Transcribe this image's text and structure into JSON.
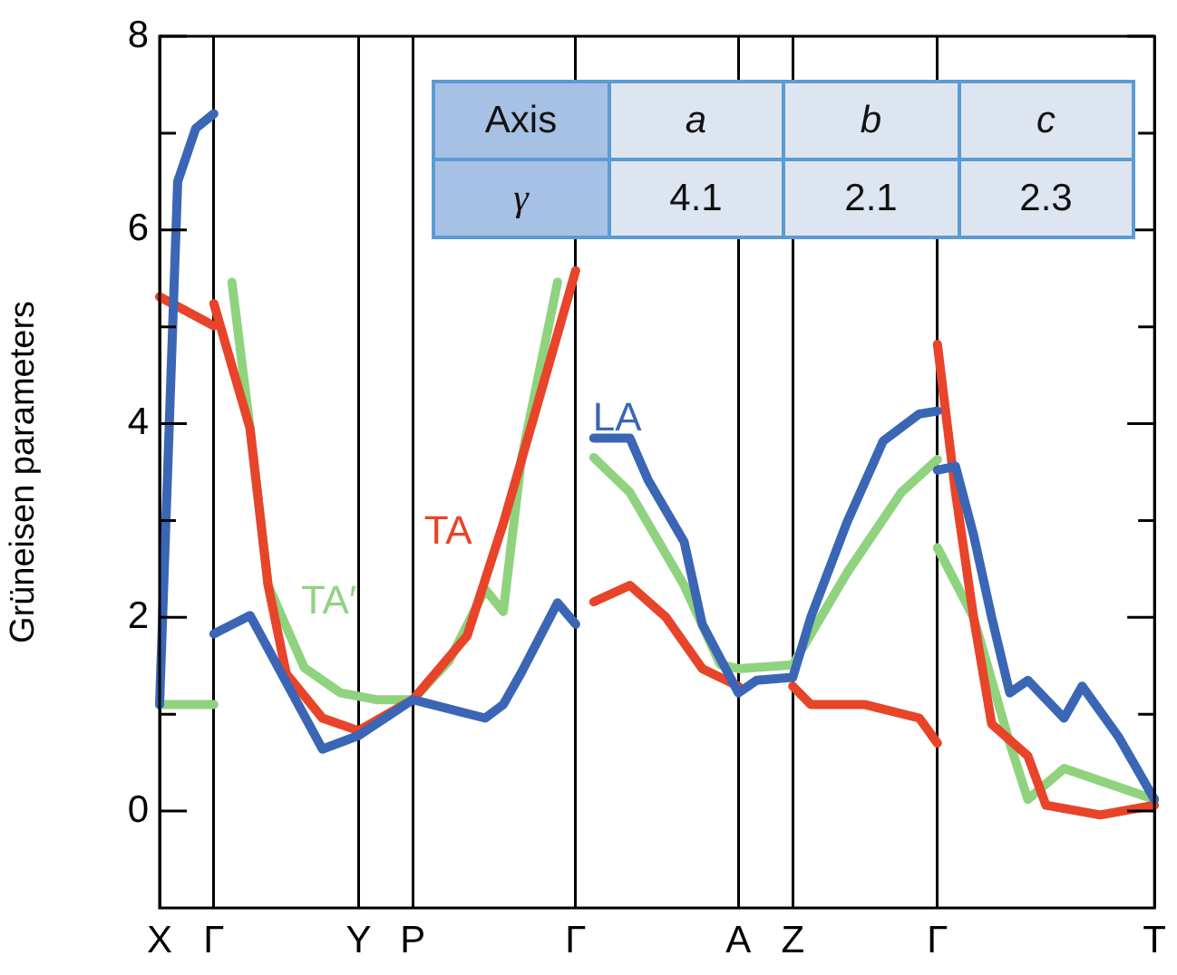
{
  "chart_data": {
    "type": "line",
    "ylabel": "Grüneisen parameters",
    "ylim": [
      -1,
      8
    ],
    "categories": [
      "X",
      null,
      null,
      "Γ",
      null,
      null,
      null,
      null,
      null,
      null,
      null,
      "Y",
      null,
      null,
      "P",
      null,
      null,
      null,
      null,
      null,
      null,
      null,
      null,
      "Γ",
      null,
      null,
      null,
      null,
      null,
      null,
      null,
      null,
      "A",
      null,
      null,
      "Z",
      null,
      null,
      null,
      null,
      null,
      null,
      null,
      "Γ",
      null,
      null,
      null,
      null,
      null,
      null,
      null,
      null,
      null,
      null,
      null,
      "T"
    ],
    "yticks": [
      0,
      {
        "value": 1,
        "label": null
      },
      2,
      {
        "value": 3,
        "label": null
      },
      4,
      {
        "value": 5,
        "label": null
      },
      6,
      {
        "value": 7,
        "label": null
      },
      8
    ],
    "grid": "x",
    "legend": false,
    "marker": "none",
    "line_style": "solid",
    "annotations": [
      "Axis",
      "a",
      "b",
      "c",
      "γ",
      "4.1",
      "2.1",
      "2.3"
    ],
    "series": [
      {
        "name": "LA",
        "color": "#3a66b5",
        "values": [
          1.1,
          6.5,
          7.05,
          7.2,
          null,
          null,
          null,
          null,
          null,
          null,
          null,
          null,
          null,
          null,
          null,
          null,
          null,
          null,
          null,
          null,
          null,
          null,
          null,
          null,
          null,
          null,
          null,
          null,
          null,
          null,
          null,
          null,
          null,
          null,
          null,
          null,
          null,
          null,
          null,
          null,
          null,
          null,
          null,
          null,
          null,
          null,
          null,
          null,
          null,
          null,
          null,
          null,
          null,
          null,
          null,
          null
        ]
      },
      {
        "color": "#3a66b5",
        "values": [
          null,
          null,
          null,
          1.83,
          null,
          2.02,
          null,
          null,
          null,
          0.64,
          null,
          0.78,
          null,
          null,
          1.15,
          null,
          null,
          null,
          0.96,
          1.1,
          1.43,
          null,
          2.15,
          1.93,
          null,
          null,
          null,
          null,
          null,
          null,
          null,
          null,
          null,
          null,
          null,
          null,
          null,
          null,
          null,
          null,
          null,
          null,
          null,
          null,
          null,
          null,
          null,
          null,
          null,
          null,
          null,
          null,
          null,
          null,
          null,
          null
        ]
      },
      {
        "color": "#3a66b5",
        "values": [
          null,
          null,
          null,
          null,
          null,
          null,
          null,
          null,
          null,
          null,
          null,
          null,
          null,
          null,
          null,
          null,
          null,
          null,
          null,
          null,
          null,
          null,
          null,
          null,
          3.85,
          null,
          3.85,
          3.42,
          null,
          2.78,
          1.93,
          null,
          1.22,
          1.35,
          null,
          1.38,
          2.0,
          null,
          2.98,
          null,
          3.82,
          null,
          4.1,
          4.13,
          null,
          null,
          null,
          null,
          null,
          null,
          null,
          null,
          null,
          null,
          null,
          null
        ]
      },
      {
        "color": "#3a66b5",
        "values": [
          null,
          null,
          null,
          null,
          null,
          null,
          null,
          null,
          null,
          null,
          null,
          null,
          null,
          null,
          null,
          null,
          null,
          null,
          null,
          null,
          null,
          null,
          null,
          null,
          null,
          null,
          null,
          null,
          null,
          null,
          null,
          null,
          null,
          null,
          null,
          null,
          null,
          null,
          null,
          null,
          null,
          null,
          null,
          3.52,
          3.56,
          2.85,
          2.0,
          1.22,
          1.35,
          null,
          0.96,
          1.29,
          null,
          0.77,
          null,
          0.12
        ]
      },
      {
        "name": "TA",
        "color": "#e8442a",
        "values": [
          5.31,
          null,
          null,
          5.01,
          null,
          null,
          null,
          null,
          null,
          null,
          null,
          null,
          null,
          null,
          null,
          null,
          null,
          null,
          null,
          null,
          null,
          null,
          null,
          null,
          null,
          null,
          null,
          null,
          null,
          null,
          null,
          null,
          null,
          null,
          null,
          null,
          null,
          null,
          null,
          null,
          null,
          null,
          null,
          null,
          null,
          null,
          null,
          null,
          null,
          null,
          null,
          null,
          null,
          null,
          null,
          null
        ]
      },
      {
        "color": "#e8442a",
        "values": [
          null,
          null,
          null,
          5.24,
          null,
          3.95,
          2.33,
          1.42,
          null,
          0.96,
          null,
          0.83,
          null,
          null,
          1.15,
          null,
          null,
          1.81,
          null,
          2.97,
          null,
          4.27,
          null,
          5.58,
          null,
          null,
          null,
          null,
          null,
          null,
          null,
          null,
          null,
          null,
          null,
          null,
          null,
          null,
          null,
          null,
          null,
          null,
          null,
          null,
          null,
          null,
          null,
          null,
          null,
          null,
          null,
          null,
          null,
          null,
          null,
          null
        ]
      },
      {
        "color": "#e8442a",
        "values": [
          null,
          null,
          null,
          null,
          null,
          null,
          null,
          null,
          null,
          null,
          null,
          null,
          null,
          null,
          null,
          null,
          null,
          null,
          null,
          null,
          null,
          null,
          null,
          null,
          2.16,
          null,
          2.33,
          null,
          2.0,
          null,
          1.47,
          null,
          1.29,
          null,
          null,
          null,
          null,
          null,
          null,
          null,
          null,
          null,
          null,
          null,
          null,
          null,
          null,
          null,
          null,
          null,
          null,
          null,
          null,
          null,
          null,
          null
        ]
      },
      {
        "color": "#e8442a",
        "values": [
          null,
          null,
          null,
          null,
          null,
          null,
          null,
          null,
          null,
          null,
          null,
          null,
          null,
          null,
          null,
          null,
          null,
          null,
          null,
          null,
          null,
          null,
          null,
          null,
          null,
          null,
          null,
          null,
          null,
          null,
          null,
          null,
          null,
          null,
          null,
          1.29,
          1.1,
          null,
          null,
          1.1,
          null,
          null,
          0.96,
          0.7,
          null,
          null,
          null,
          null,
          null,
          null,
          null,
          null,
          null,
          null,
          null,
          null
        ]
      },
      {
        "color": "#e8442a",
        "values": [
          null,
          null,
          null,
          null,
          null,
          null,
          null,
          null,
          null,
          null,
          null,
          null,
          null,
          null,
          null,
          null,
          null,
          null,
          null,
          null,
          null,
          null,
          null,
          null,
          null,
          null,
          null,
          null,
          null,
          null,
          null,
          null,
          null,
          null,
          null,
          null,
          null,
          null,
          null,
          null,
          null,
          null,
          null,
          4.82,
          3.29,
          2.0,
          0.9,
          null,
          0.57,
          0.06,
          null,
          null,
          -0.04,
          null,
          null,
          0.06
        ]
      },
      {
        "name": "TA′",
        "color": "#8fd37f",
        "values": [
          1.1,
          null,
          null,
          1.1,
          null,
          null,
          null,
          null,
          null,
          null,
          null,
          null,
          null,
          null,
          null,
          null,
          null,
          null,
          null,
          null,
          null,
          null,
          null,
          null,
          null,
          null,
          null,
          null,
          null,
          null,
          null,
          null,
          null,
          null,
          null,
          null,
          null,
          null,
          null,
          null,
          null,
          null,
          null,
          null,
          null,
          null,
          null,
          null,
          null,
          null,
          null,
          null,
          null,
          null,
          null,
          null
        ]
      },
      {
        "color": "#8fd37f",
        "values": [
          null,
          null,
          null,
          null,
          5.46,
          3.95,
          2.33,
          null,
          1.48,
          null,
          1.22,
          null,
          1.15,
          null,
          1.15,
          null,
          1.55,
          null,
          2.29,
          2.06,
          3.63,
          null,
          5.46,
          null,
          null,
          null,
          null,
          null,
          null,
          null,
          null,
          null,
          null,
          null,
          null,
          null,
          null,
          null,
          null,
          null,
          null,
          null,
          null,
          null,
          null,
          null,
          null,
          null,
          null,
          null,
          null,
          null,
          null,
          null,
          null,
          null
        ]
      },
      {
        "color": "#8fd37f",
        "values": [
          null,
          null,
          null,
          null,
          null,
          null,
          null,
          null,
          null,
          null,
          null,
          null,
          null,
          null,
          null,
          null,
          null,
          null,
          null,
          null,
          null,
          null,
          null,
          null,
          3.65,
          null,
          3.29,
          null,
          null,
          2.33,
          null,
          1.51,
          1.47,
          null,
          null,
          1.51,
          null,
          null,
          2.46,
          null,
          null,
          3.29,
          null,
          3.63,
          null,
          null,
          null,
          null,
          null,
          null,
          null,
          null,
          null,
          null,
          null,
          null
        ]
      },
      {
        "color": "#8fd37f",
        "values": [
          null,
          null,
          null,
          null,
          null,
          null,
          null,
          null,
          null,
          null,
          null,
          null,
          null,
          null,
          null,
          null,
          null,
          null,
          null,
          null,
          null,
          null,
          null,
          null,
          null,
          null,
          null,
          null,
          null,
          null,
          null,
          null,
          null,
          null,
          null,
          null,
          null,
          null,
          null,
          null,
          null,
          null,
          null,
          2.72,
          null,
          2.0,
          null,
          0.7,
          0.12,
          null,
          0.44,
          null,
          null,
          null,
          null,
          0.12
        ]
      }
    ]
  }
}
